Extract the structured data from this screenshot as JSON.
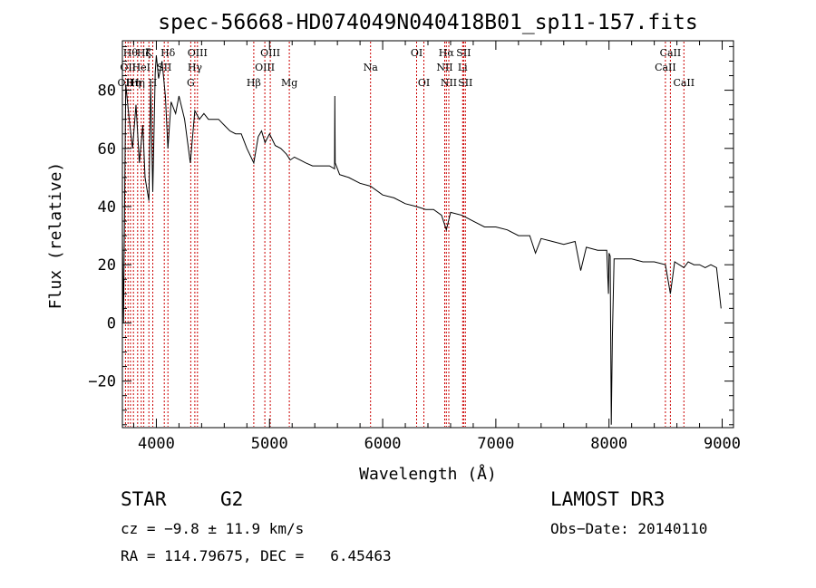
{
  "chart_data": {
    "type": "line",
    "title": "spec-56668-HD074049N040418B01_sp11-157.fits",
    "xlabel": "Wavelength (Å)",
    "ylabel": "Flux (relative)",
    "xlim": [
      3700,
      9100
    ],
    "ylim": [
      -36,
      97
    ],
    "x_ticks": [
      4000,
      5000,
      6000,
      7000,
      8000,
      9000
    ],
    "x_tick_labels": [
      "4000",
      "5000",
      "6000",
      "7000",
      "8000",
      "9000"
    ],
    "y_ticks": [
      -20,
      0,
      20,
      40,
      60,
      80
    ],
    "y_tick_labels": [
      "−20",
      "0",
      "20",
      "40",
      "60",
      "80"
    ],
    "series": [
      {
        "name": "flux",
        "x": [
          3700,
          3710,
          3730,
          3760,
          3790,
          3820,
          3850,
          3880,
          3900,
          3934,
          3950,
          3968,
          3990,
          4000,
          4020,
          4050,
          4080,
          4102,
          4130,
          4170,
          4200,
          4250,
          4300,
          4340,
          4380,
          4420,
          4460,
          4500,
          4550,
          4600,
          4650,
          4700,
          4750,
          4800,
          4861,
          4900,
          4930,
          4960,
          5000,
          5050,
          5100,
          5150,
          5183,
          5220,
          5270,
          5320,
          5380,
          5430,
          5480,
          5530,
          5575,
          5577,
          5580,
          5620,
          5700,
          5800,
          5893,
          6000,
          6100,
          6200,
          6300,
          6380,
          6450,
          6520,
          6563,
          6600,
          6700,
          6800,
          6900,
          7000,
          7100,
          7200,
          7300,
          7350,
          7400,
          7500,
          7600,
          7700,
          7750,
          7800,
          7900,
          7980,
          7995,
          8000,
          8010,
          8020,
          8030,
          8045,
          8100,
          8200,
          8300,
          8400,
          8498,
          8542,
          8580,
          8662,
          8700,
          8750,
          8800,
          8850,
          8900,
          8950,
          8990
        ],
        "values": [
          30,
          0,
          82,
          70,
          60,
          75,
          55,
          68,
          50,
          42,
          82,
          45,
          86,
          92,
          84,
          90,
          78,
          60,
          76,
          72,
          78,
          70,
          55,
          73,
          70,
          72,
          70,
          70,
          70,
          68,
          66,
          65,
          65,
          60,
          55,
          64,
          66,
          62,
          65,
          61,
          60,
          58,
          56,
          57,
          56,
          55,
          54,
          54,
          54,
          54,
          53,
          78,
          55,
          51,
          50,
          48,
          47,
          44,
          43,
          41,
          40,
          39,
          39,
          37,
          32,
          38,
          37,
          35,
          33,
          33,
          32,
          30,
          30,
          24,
          29,
          28,
          27,
          28,
          18,
          26,
          25,
          25,
          10,
          24,
          23,
          -35,
          -5,
          22,
          22,
          22,
          21,
          21,
          20,
          10,
          21,
          19,
          21,
          20,
          20,
          19,
          20,
          19,
          5
        ]
      }
    ],
    "spectral_lines": [
      {
        "wavelength": 3727,
        "label": "OII",
        "level": 2
      },
      {
        "wavelength": 3750,
        "label": "OII",
        "level": 1
      },
      {
        "wavelength": 3771,
        "label": "Hθ",
        "level": 0
      },
      {
        "wavelength": 3798,
        "label": "Hη",
        "level": 2
      },
      {
        "wavelength": 3835,
        "label": "Hη",
        "level": 2
      },
      {
        "wavelength": 3867,
        "label": "HeI",
        "level": 1
      },
      {
        "wavelength": 3889,
        "label": "Hζ",
        "level": 0
      },
      {
        "wavelength": 3934,
        "label": "K",
        "level": 0
      },
      {
        "wavelength": 3968,
        "label": "H",
        "level": 2
      },
      {
        "wavelength": 4070,
        "label": "SII",
        "level": 1
      },
      {
        "wavelength": 4102,
        "label": "Hδ",
        "level": 0
      },
      {
        "wavelength": 4304,
        "label": "G",
        "level": 2
      },
      {
        "wavelength": 4340,
        "label": "Hγ",
        "level": 1
      },
      {
        "wavelength": 4363,
        "label": "OIII",
        "level": 0
      },
      {
        "wavelength": 4861,
        "label": "Hβ",
        "level": 2
      },
      {
        "wavelength": 4959,
        "label": "OIII",
        "level": 1
      },
      {
        "wavelength": 5007,
        "label": "OIII",
        "level": 0
      },
      {
        "wavelength": 5175,
        "label": "Mg",
        "level": 2
      },
      {
        "wavelength": 5893,
        "label": "Na",
        "level": 1
      },
      {
        "wavelength": 6300,
        "label": "OI",
        "level": 0
      },
      {
        "wavelength": 6364,
        "label": "OI",
        "level": 2
      },
      {
        "wavelength": 6548,
        "label": "NII",
        "level": 1
      },
      {
        "wavelength": 6563,
        "label": "Hα",
        "level": 0
      },
      {
        "wavelength": 6584,
        "label": "NII",
        "level": 2
      },
      {
        "wavelength": 6707,
        "label": "Li",
        "level": 1
      },
      {
        "wavelength": 6716,
        "label": "SII",
        "level": 0
      },
      {
        "wavelength": 6731,
        "label": "SII",
        "level": 2
      },
      {
        "wavelength": 8498,
        "label": "CaII",
        "level": 1
      },
      {
        "wavelength": 8542,
        "label": "CaII",
        "level": 0
      },
      {
        "wavelength": 8662,
        "label": "CaII",
        "level": 2
      }
    ],
    "grid": false,
    "line_color": "#000000",
    "marker_line_color": "#cc0000"
  },
  "footer": {
    "object_type": "STAR",
    "subclass": "G2",
    "survey": "LAMOST DR3",
    "redshift": "cz = −9.8 ± 11.9 km/s",
    "obs_date": "Obs−Date: 20140110",
    "coords": "RA = 114.79675, DEC =   6.45463"
  }
}
